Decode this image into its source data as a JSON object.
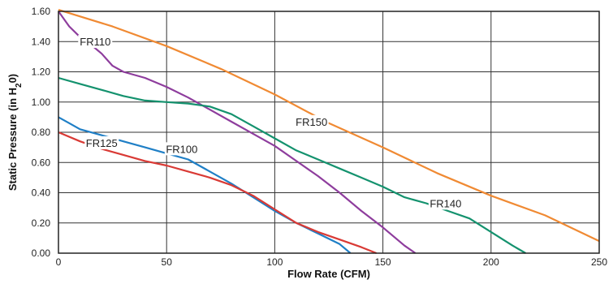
{
  "chart_data": {
    "type": "line",
    "xlabel": "Flow Rate (CFM)",
    "ylabel_main": "Static Pressure (in H",
    "ylabel_sub": "2",
    "ylabel_end": "0)",
    "xlim": [
      0,
      250
    ],
    "ylim": [
      0,
      1.6
    ],
    "x_ticks": [
      "0",
      "50",
      "100",
      "150",
      "200",
      "250"
    ],
    "y_ticks": [
      "0.00",
      "0.20",
      "0.40",
      "0.60",
      "0.80",
      "1.00",
      "1.20",
      "1.40",
      "1.60"
    ],
    "grid": true,
    "series": [
      {
        "name": "FR100",
        "color": "#1f7fc6",
        "label_at": [
          57,
          0.68
        ],
        "points": [
          [
            0,
            0.9
          ],
          [
            5,
            0.86
          ],
          [
            10,
            0.82
          ],
          [
            20,
            0.78
          ],
          [
            30,
            0.74
          ],
          [
            40,
            0.7
          ],
          [
            50,
            0.66
          ],
          [
            60,
            0.62
          ],
          [
            70,
            0.54
          ],
          [
            80,
            0.46
          ],
          [
            90,
            0.37
          ],
          [
            100,
            0.28
          ],
          [
            110,
            0.2
          ],
          [
            120,
            0.13
          ],
          [
            130,
            0.06
          ],
          [
            135,
            0.0
          ]
        ]
      },
      {
        "name": "FR110",
        "color": "#8e3d9d",
        "label_at": [
          17,
          1.39
        ],
        "points": [
          [
            0,
            1.6
          ],
          [
            5,
            1.5
          ],
          [
            10,
            1.43
          ],
          [
            15,
            1.38
          ],
          [
            20,
            1.32
          ],
          [
            25,
            1.24
          ],
          [
            30,
            1.2
          ],
          [
            40,
            1.16
          ],
          [
            50,
            1.1
          ],
          [
            60,
            1.03
          ],
          [
            70,
            0.95
          ],
          [
            80,
            0.87
          ],
          [
            90,
            0.79
          ],
          [
            100,
            0.71
          ],
          [
            110,
            0.61
          ],
          [
            120,
            0.51
          ],
          [
            130,
            0.4
          ],
          [
            140,
            0.28
          ],
          [
            150,
            0.17
          ],
          [
            160,
            0.05
          ],
          [
            165,
            0.0
          ]
        ]
      },
      {
        "name": "FR125",
        "color": "#d93a35",
        "label_at": [
          20,
          0.72
        ],
        "points": [
          [
            0,
            0.8
          ],
          [
            10,
            0.74
          ],
          [
            20,
            0.69
          ],
          [
            30,
            0.65
          ],
          [
            40,
            0.61
          ],
          [
            50,
            0.58
          ],
          [
            60,
            0.54
          ],
          [
            70,
            0.5
          ],
          [
            80,
            0.45
          ],
          [
            90,
            0.38
          ],
          [
            100,
            0.29
          ],
          [
            110,
            0.2
          ],
          [
            120,
            0.14
          ],
          [
            130,
            0.09
          ],
          [
            140,
            0.04
          ],
          [
            147,
            0.0
          ]
        ]
      },
      {
        "name": "FR140",
        "color": "#14926e",
        "label_at": [
          179,
          0.32
        ],
        "points": [
          [
            0,
            1.16
          ],
          [
            10,
            1.12
          ],
          [
            20,
            1.08
          ],
          [
            30,
            1.04
          ],
          [
            40,
            1.01
          ],
          [
            50,
            1.0
          ],
          [
            60,
            0.99
          ],
          [
            70,
            0.97
          ],
          [
            80,
            0.92
          ],
          [
            90,
            0.84
          ],
          [
            100,
            0.76
          ],
          [
            110,
            0.68
          ],
          [
            120,
            0.62
          ],
          [
            130,
            0.56
          ],
          [
            140,
            0.5
          ],
          [
            150,
            0.44
          ],
          [
            160,
            0.37
          ],
          [
            170,
            0.33
          ],
          [
            180,
            0.28
          ],
          [
            190,
            0.23
          ],
          [
            200,
            0.14
          ],
          [
            210,
            0.05
          ],
          [
            216,
            0.0
          ]
        ]
      },
      {
        "name": "FR150",
        "color": "#f08a33",
        "label_at": [
          117,
          0.86
        ],
        "points": [
          [
            0,
            1.61
          ],
          [
            25,
            1.5
          ],
          [
            50,
            1.37
          ],
          [
            75,
            1.22
          ],
          [
            100,
            1.05
          ],
          [
            125,
            0.86
          ],
          [
            150,
            0.7
          ],
          [
            175,
            0.53
          ],
          [
            200,
            0.38
          ],
          [
            225,
            0.25
          ],
          [
            250,
            0.08
          ]
        ]
      }
    ]
  }
}
